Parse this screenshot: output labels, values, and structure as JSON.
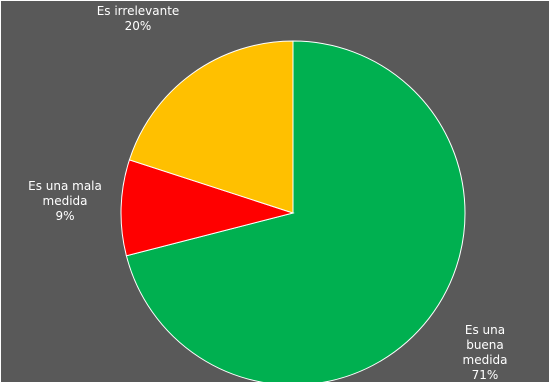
{
  "chart_data": {
    "type": "pie",
    "categories": [
      "Es una buena medida",
      "Es una mala medida",
      "Es irrelevante"
    ],
    "values": [
      71,
      9,
      20
    ],
    "value_labels": [
      "71%",
      "9%",
      "20%"
    ],
    "colors": [
      "#00b050",
      "#ff0000",
      "#ffc000"
    ]
  }
}
